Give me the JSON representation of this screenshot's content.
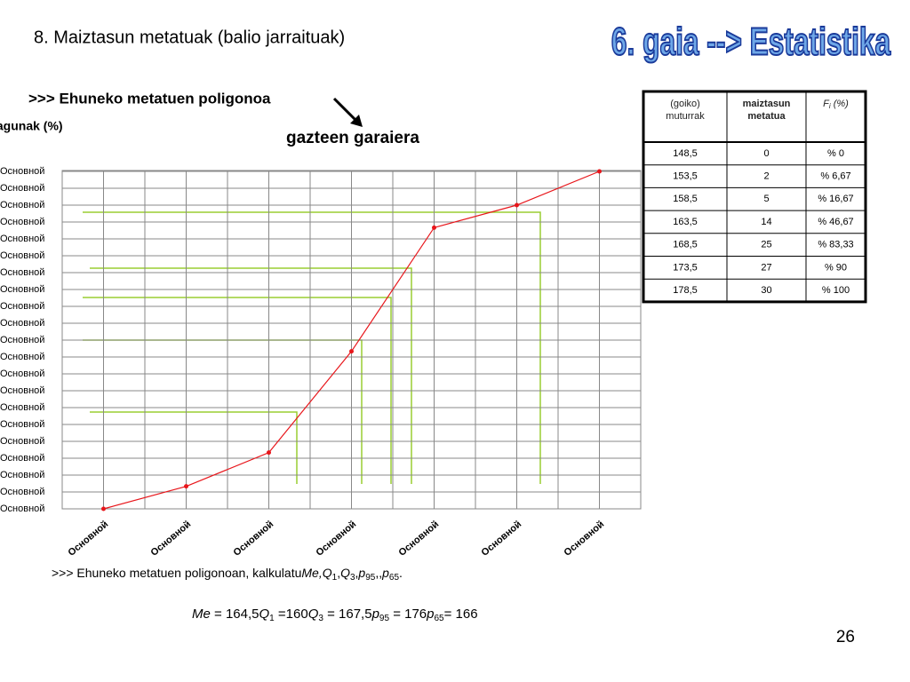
{
  "title": "8. Maiztasun metatuak (balio jarraituak)",
  "logo": "6. gaia --> Estatistika",
  "subtitle": ">>> Ehuneko metatuen poligonoa",
  "caption": "gazteen garaiera",
  "table": {
    "header": [
      {
        "text": "(goiko) muturrak"
      },
      {
        "text": "maiztasun metatua"
      },
      {
        "text": "F",
        "sub": "i",
        "rest": " (%)"
      }
    ],
    "rows": [
      [
        "148,5",
        "0",
        "% 0"
      ],
      [
        "153,5",
        "2",
        "% 6,67"
      ],
      [
        "158,5",
        "5",
        "% 16,67"
      ],
      [
        "163,5",
        "14",
        "% 46,67"
      ],
      [
        "168,5",
        "25",
        "% 83,33"
      ],
      [
        "173,5",
        "27",
        "% 90"
      ],
      [
        "178,5",
        "30",
        "% 100"
      ]
    ]
  },
  "task": {
    "prefix": ">>> Ehuneko metatuen poligonoan, kalkulatu",
    "terms": [
      {
        "main": "Me,"
      },
      {
        "main": "Q",
        "sub": "1",
        "rest": ","
      },
      {
        "main": "Q",
        "sub": "3",
        "rest": ","
      },
      {
        "main": "p",
        "sub": "95",
        "rest": ",,"
      },
      {
        "main": "p",
        "sub": "65",
        "rest": "."
      }
    ]
  },
  "results": [
    {
      "main": "Me",
      "rest": " = 164,5"
    },
    {
      "main": "Q",
      "sub": "1",
      "rest": " =160"
    },
    {
      "main": "Q",
      "sub": "3",
      "rest": " = 167,5"
    },
    {
      "main": "p",
      "sub": "95",
      "rest": " = 176"
    },
    {
      "main": "p",
      "sub": "65",
      "rest": "= 166"
    }
  ],
  "page_number": "26",
  "chart_data": {
    "type": "line",
    "y_label": "lagunak (%)",
    "categories": [
      "Основной",
      "Основной",
      "Основной",
      "Основной",
      "Основной",
      "Основной",
      "Основной"
    ],
    "series": [
      {
        "name": "Fi (%)",
        "color": "#e8161b",
        "values": [
          0,
          6.67,
          16.67,
          46.67,
          83.33,
          90,
          100
        ]
      }
    ],
    "ylim": [
      0,
      100
    ],
    "yticks": [
      {
        "value": 0,
        "label": "Основной"
      },
      {
        "value": 5,
        "label": "Основной"
      },
      {
        "value": 10,
        "label": "Основной"
      },
      {
        "value": 15,
        "label": "Основной"
      },
      {
        "value": 20,
        "label": "Основной"
      },
      {
        "value": 25,
        "label": "Основной"
      },
      {
        "value": 30,
        "label": "Основной"
      },
      {
        "value": 35,
        "label": "Основной"
      },
      {
        "value": 40,
        "label": "Основной"
      },
      {
        "value": 45,
        "label": "Основной"
      },
      {
        "value": 50,
        "label": "Основной"
      },
      {
        "value": 55,
        "label": "Основной"
      },
      {
        "value": 60,
        "label": "Основной"
      },
      {
        "value": 65,
        "label": "Основной"
      },
      {
        "value": 70,
        "label": "Основной"
      },
      {
        "value": 75,
        "label": "Основной"
      },
      {
        "value": 80,
        "label": "Основной"
      },
      {
        "value": 85,
        "label": "Основной"
      },
      {
        "value": 90,
        "label": "Основной"
      },
      {
        "value": 95,
        "label": "Основной"
      },
      {
        "value": 100,
        "label": "Основной"
      }
    ],
    "grid": true
  }
}
